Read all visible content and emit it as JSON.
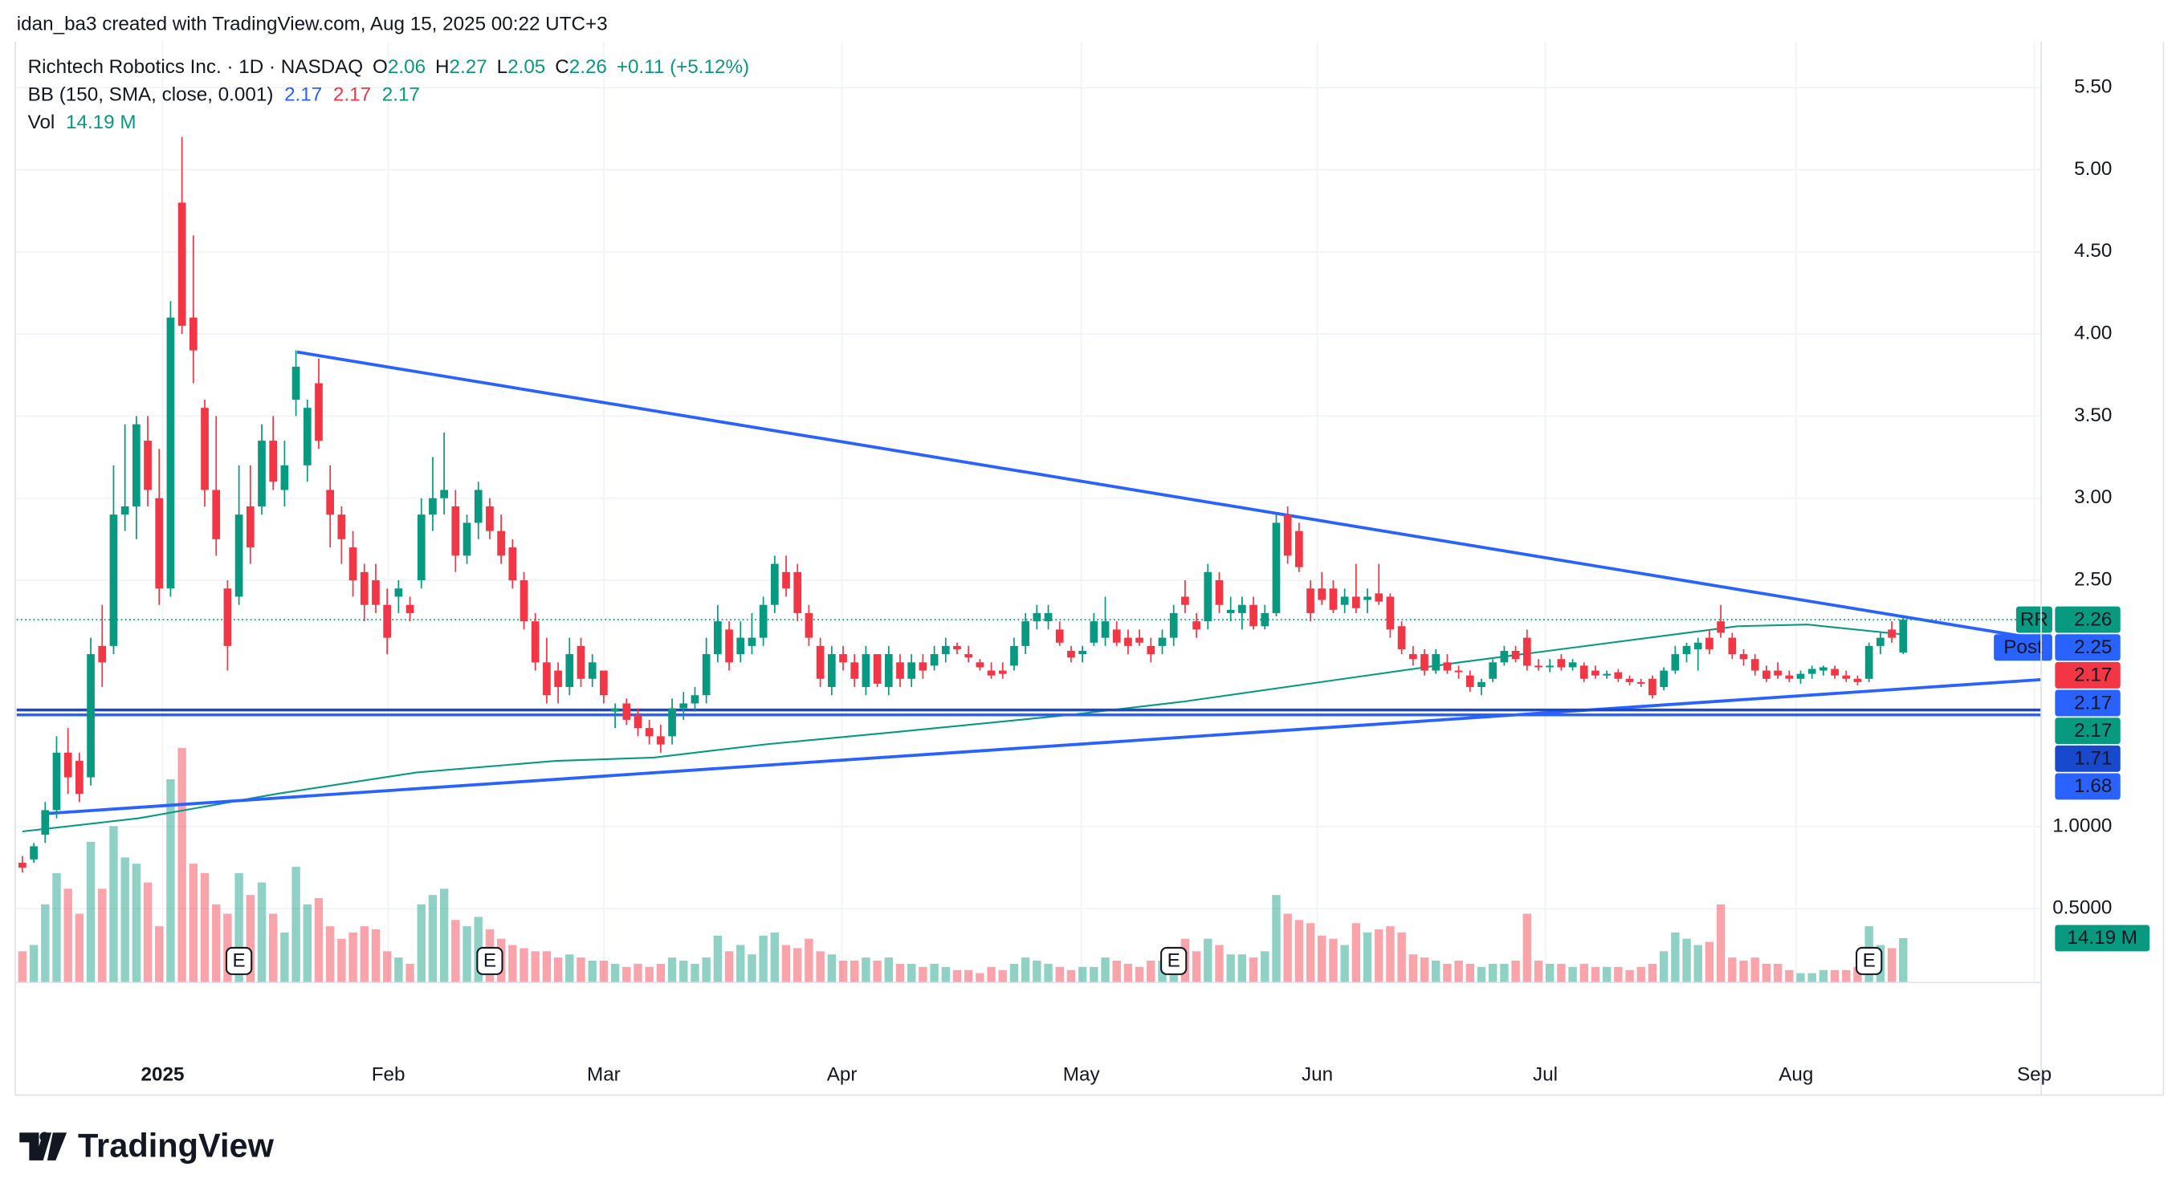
{
  "header": {
    "attribution": "idan_ba3 created with TradingView.com, Aug 15, 2025 00:22 UTC+3",
    "symbol": "Richtech Robotics Inc. · 1D · NASDAQ",
    "ohlc_keys": [
      "O",
      "H",
      "L",
      "C"
    ],
    "change": "+0.11 (+5.12%)",
    "volume_name": "Vol",
    "volume_last": {
      "value": 14.19,
      "label": "14.19 M"
    }
  },
  "footer": {
    "brand": "TradingView"
  },
  "chart_data": {
    "type": "candlestick",
    "up_color": "#089981",
    "down_color": "#f23645",
    "ylim": [
      0.05,
      5.78
    ],
    "yticks": [
      {
        "value": 0.5,
        "label": "0.5000"
      },
      {
        "value": 1,
        "label": "1.0000"
      },
      {
        "value": 2.5,
        "label": "2.50"
      },
      {
        "value": 3,
        "label": "3.00"
      },
      {
        "value": 3.5,
        "label": "3.50"
      },
      {
        "value": 4,
        "label": "4.00"
      },
      {
        "value": 4.5,
        "label": "4.50"
      },
      {
        "value": 5,
        "label": "5.00"
      },
      {
        "value": 5.5,
        "label": "5.50"
      }
    ],
    "xlim": [
      -0.5,
      177.1
    ],
    "xticks": [
      {
        "value": 12.3,
        "label": "2025"
      },
      {
        "value": 32.1,
        "label": "Feb"
      },
      {
        "value": 51,
        "label": "Mar"
      },
      {
        "value": 71.9,
        "label": "Apr"
      },
      {
        "value": 92.9,
        "label": "May"
      },
      {
        "value": 113.6,
        "label": "Jun"
      },
      {
        "value": 133.6,
        "label": "Jul"
      },
      {
        "value": 155.6,
        "label": "Aug"
      },
      {
        "value": 176.5,
        "label": "Sep"
      }
    ],
    "grid": true,
    "open": [
      0.78,
      0.8,
      0.95,
      1.1,
      1.45,
      1.4,
      1.3,
      2.1,
      2.1,
      2.9,
      2.95,
      3.35,
      3.0,
      2.45,
      4.8,
      4.1,
      3.55,
      3.05,
      2.45,
      2.4,
      2.95,
      2.95,
      3.35,
      3.05,
      3.6,
      3.2,
      3.7,
      3.05,
      2.9,
      2.7,
      2.55,
      2.5,
      2.35,
      2.4,
      2.35,
      2.5,
      2.9,
      3.0,
      2.95,
      2.65,
      2.85,
      2.95,
      2.8,
      2.7,
      2.5,
      2.25,
      2.0,
      1.95,
      1.85,
      2.1,
      1.9,
      1.95,
      1.7,
      1.75,
      1.68,
      1.6,
      1.55,
      1.55,
      1.72,
      1.75,
      1.8,
      2.05,
      2.2,
      2.05,
      2.1,
      2.15,
      2.35,
      2.55,
      2.55,
      2.3,
      2.1,
      1.85,
      2.05,
      2.0,
      1.85,
      2.05,
      1.85,
      2.0,
      1.9,
      2.0,
      1.98,
      2.05,
      2.1,
      2.05,
      2.0,
      1.95,
      1.95,
      1.98,
      2.1,
      2.25,
      2.25,
      2.2,
      2.07,
      2.05,
      2.12,
      2.15,
      2.2,
      2.15,
      2.15,
      2.1,
      2.1,
      2.15,
      2.4,
      2.25,
      2.25,
      2.5,
      2.3,
      2.3,
      2.35,
      2.22,
      2.3,
      2.9,
      2.8,
      2.45,
      2.45,
      2.45,
      2.35,
      2.4,
      2.38,
      2.42,
      2.4,
      2.22,
      2.05,
      2.05,
      1.95,
      2.0,
      1.95,
      1.92,
      1.85,
      1.9,
      2.0,
      2.07,
      2.15,
      1.98,
      1.97,
      2.02,
      1.97,
      1.98,
      1.95,
      1.92,
      1.94,
      1.9,
      1.88,
      1.9,
      1.85,
      1.95,
      2.05,
      2.08,
      2.15,
      2.25,
      2.15,
      2.05,
      2.02,
      1.95,
      1.95,
      1.92,
      1.9,
      1.93,
      1.95,
      1.96,
      1.92,
      1.9,
      1.9,
      2.1,
      2.2,
      2.06
    ],
    "high": [
      0.82,
      0.9,
      1.15,
      1.55,
      1.6,
      1.45,
      2.15,
      2.35,
      3.2,
      3.45,
      3.5,
      3.5,
      3.3,
      4.2,
      5.2,
      4.6,
      3.6,
      3.5,
      2.5,
      3.2,
      3.2,
      3.45,
      3.5,
      3.35,
      3.9,
      3.6,
      3.85,
      3.2,
      2.95,
      2.8,
      2.6,
      2.6,
      2.45,
      2.5,
      2.4,
      3.0,
      3.25,
      3.4,
      3.05,
      2.9,
      3.1,
      3.0,
      2.9,
      2.75,
      2.55,
      2.3,
      2.15,
      2.0,
      2.15,
      2.15,
      2.05,
      1.95,
      1.75,
      1.78,
      1.72,
      1.65,
      1.62,
      1.78,
      1.82,
      1.85,
      2.15,
      2.35,
      2.25,
      2.25,
      2.3,
      2.4,
      2.65,
      2.65,
      2.6,
      2.35,
      2.15,
      2.1,
      2.1,
      2.05,
      2.1,
      2.05,
      2.1,
      2.05,
      2.05,
      2.05,
      2.1,
      2.15,
      2.12,
      2.1,
      2.02,
      2.0,
      2.0,
      2.15,
      2.3,
      2.35,
      2.35,
      2.25,
      2.1,
      2.1,
      2.3,
      2.4,
      2.25,
      2.2,
      2.2,
      2.15,
      2.2,
      2.35,
      2.5,
      2.3,
      2.6,
      2.55,
      2.4,
      2.4,
      2.4,
      2.35,
      2.9,
      2.95,
      2.85,
      2.5,
      2.55,
      2.5,
      2.45,
      2.6,
      2.45,
      2.6,
      2.42,
      2.25,
      2.1,
      2.08,
      2.08,
      2.05,
      1.98,
      1.95,
      1.9,
      2.02,
      2.1,
      2.1,
      2.2,
      2.02,
      2.02,
      2.05,
      2.02,
      2.0,
      1.98,
      1.95,
      1.96,
      1.92,
      1.9,
      1.92,
      1.97,
      2.1,
      2.12,
      2.15,
      2.2,
      2.35,
      2.18,
      2.08,
      2.05,
      1.98,
      2.0,
      1.95,
      1.95,
      1.98,
      1.98,
      1.98,
      1.95,
      1.92,
      2.12,
      2.18,
      2.25,
      2.27
    ],
    "low": [
      0.72,
      0.78,
      0.9,
      1.05,
      1.2,
      1.15,
      1.25,
      1.85,
      2.05,
      2.8,
      2.75,
      2.95,
      2.35,
      2.4,
      4.0,
      3.7,
      2.95,
      2.65,
      1.95,
      2.35,
      2.6,
      2.9,
      3.05,
      2.95,
      3.5,
      3.1,
      3.3,
      2.7,
      2.6,
      2.4,
      2.25,
      2.3,
      2.05,
      2.3,
      2.25,
      2.45,
      2.8,
      2.9,
      2.55,
      2.6,
      2.75,
      2.75,
      2.6,
      2.45,
      2.2,
      1.95,
      1.75,
      1.75,
      1.8,
      1.85,
      1.85,
      1.75,
      1.6,
      1.62,
      1.55,
      1.5,
      1.45,
      1.5,
      1.65,
      1.7,
      1.75,
      2.0,
      1.95,
      2.0,
      2.05,
      2.1,
      2.3,
      2.4,
      2.25,
      2.1,
      1.85,
      1.8,
      1.95,
      1.85,
      1.8,
      1.85,
      1.8,
      1.85,
      1.85,
      1.9,
      1.95,
      2.0,
      2.05,
      2.0,
      1.95,
      1.9,
      1.9,
      1.95,
      2.05,
      2.2,
      2.2,
      2.1,
      2.0,
      2.0,
      2.1,
      2.1,
      2.1,
      2.05,
      2.1,
      2.0,
      2.05,
      2.1,
      2.3,
      2.15,
      2.2,
      2.3,
      2.25,
      2.2,
      2.2,
      2.2,
      2.28,
      2.6,
      2.55,
      2.25,
      2.35,
      2.3,
      2.3,
      2.3,
      2.3,
      2.35,
      2.15,
      2.05,
      1.98,
      1.92,
      1.93,
      1.93,
      1.9,
      1.82,
      1.8,
      1.88,
      1.98,
      2.0,
      1.95,
      1.95,
      1.94,
      1.95,
      1.95,
      1.88,
      1.9,
      1.9,
      1.88,
      1.86,
      1.85,
      1.78,
      1.83,
      1.93,
      2.0,
      1.95,
      2.05,
      2.15,
      2.02,
      1.98,
      1.92,
      1.88,
      1.9,
      1.88,
      1.87,
      1.9,
      1.92,
      1.9,
      1.88,
      1.86,
      1.88,
      2.05,
      2.12,
      2.05
    ],
    "close": [
      0.75,
      0.88,
      1.1,
      1.45,
      1.3,
      1.2,
      2.05,
      2.0,
      2.9,
      2.95,
      3.45,
      3.05,
      2.45,
      4.1,
      4.05,
      3.9,
      3.05,
      2.75,
      2.1,
      2.9,
      2.7,
      3.35,
      3.1,
      3.2,
      3.8,
      3.55,
      3.35,
      2.9,
      2.75,
      2.5,
      2.35,
      2.35,
      2.15,
      2.45,
      2.3,
      2.9,
      3.0,
      3.05,
      2.65,
      2.85,
      3.05,
      2.8,
      2.65,
      2.5,
      2.25,
      2.0,
      1.8,
      1.85,
      2.05,
      1.9,
      2.0,
      1.8,
      1.72,
      1.65,
      1.6,
      1.55,
      1.5,
      1.72,
      1.75,
      1.8,
      2.05,
      2.25,
      2.0,
      2.15,
      2.15,
      2.35,
      2.6,
      2.45,
      2.3,
      2.15,
      1.9,
      2.05,
      2.0,
      1.9,
      2.05,
      1.87,
      2.05,
      1.9,
      2.0,
      1.95,
      2.05,
      2.1,
      2.08,
      2.03,
      1.97,
      1.92,
      1.93,
      2.1,
      2.25,
      2.3,
      2.3,
      2.12,
      2.03,
      2.07,
      2.25,
      2.25,
      2.12,
      2.1,
      2.12,
      2.05,
      2.15,
      2.3,
      2.35,
      2.2,
      2.55,
      2.35,
      2.32,
      2.35,
      2.22,
      2.3,
      2.85,
      2.65,
      2.58,
      2.3,
      2.38,
      2.32,
      2.4,
      2.33,
      2.4,
      2.37,
      2.2,
      2.08,
      2.02,
      1.95,
      2.05,
      1.95,
      1.94,
      1.85,
      1.88,
      2.0,
      2.07,
      2.02,
      1.98,
      1.97,
      1.98,
      1.97,
      2.0,
      1.9,
      1.92,
      1.93,
      1.9,
      1.88,
      1.87,
      1.8,
      1.95,
      2.05,
      2.1,
      2.12,
      2.08,
      2.18,
      2.05,
      2.02,
      1.95,
      1.9,
      1.92,
      1.9,
      1.93,
      1.96,
      1.97,
      1.92,
      1.9,
      1.88,
      2.1,
      2.15,
      2.15,
      2.26
    ],
    "volume": [
      10,
      12,
      25,
      35,
      30,
      22,
      45,
      30,
      50,
      40,
      38,
      32,
      18,
      65,
      75,
      38,
      35,
      25,
      22,
      35,
      28,
      32,
      22,
      16,
      37,
      25,
      27,
      18,
      14,
      16,
      18,
      17,
      10,
      8,
      6,
      25,
      28,
      30,
      20,
      18,
      21,
      17,
      14,
      12,
      11,
      10,
      10,
      8,
      9,
      8,
      7,
      7,
      6,
      5,
      6,
      5,
      6,
      8,
      7,
      6,
      8,
      15,
      10,
      12,
      9,
      15,
      16,
      12,
      11,
      14,
      10,
      9,
      7,
      7,
      8,
      7,
      8,
      6,
      6,
      5,
      6,
      5,
      4,
      4,
      3,
      5,
      4,
      6,
      8,
      7,
      6,
      5,
      4,
      5,
      5,
      8,
      7,
      6,
      5,
      7,
      7,
      9,
      14,
      10,
      14,
      12,
      9,
      9,
      8,
      10,
      28,
      22,
      20,
      19,
      15,
      14,
      12,
      19,
      16,
      17,
      18,
      16,
      9,
      8,
      7,
      6,
      7,
      6,
      5,
      6,
      6,
      7,
      22,
      7,
      6,
      6,
      5,
      6,
      5,
      5,
      5,
      4,
      5,
      6,
      10,
      16,
      14,
      12,
      13,
      25,
      8,
      7,
      8,
      6,
      6,
      4,
      3,
      3,
      4,
      4,
      4,
      5,
      18,
      12,
      11,
      14.19
    ],
    "bb": {
      "name": "BB (150, SMA, close, 0.001)",
      "color": "#089981",
      "bands": [
        {
          "value": 2.17,
          "color": "#2962ff"
        },
        {
          "value": 2.17,
          "color": "#f23645"
        },
        {
          "value": 2.17,
          "color": "#089981"
        }
      ],
      "x": [
        0,
        10.2,
        22.4,
        34.6,
        46.8,
        55.4,
        65.1,
        77.3,
        91.9,
        101.7,
        113.9,
        126.1,
        138.3,
        150.5,
        156.6,
        165
      ],
      "values": [
        0.97,
        1.05,
        1.2,
        1.33,
        1.4,
        1.42,
        1.5,
        1.58,
        1.68,
        1.76,
        1.88,
        2.0,
        2.11,
        2.22,
        2.23,
        2.17
      ]
    },
    "trendlines": [
      {
        "color": "#2962ff",
        "x": [
          24.1,
          177.1
        ],
        "values": [
          3.89,
          2.14
        ]
      },
      {
        "color": "#2962ff",
        "x": [
          2.3,
          177.1
        ],
        "values": [
          1.08,
          1.895
        ]
      }
    ],
    "hlines": [
      {
        "value": 1.71,
        "color": "#1848cc"
      },
      {
        "value": 1.68,
        "color": "#2962ff"
      }
    ],
    "earnings": {
      "label": "E",
      "x": [
        19,
        41,
        101,
        162
      ]
    },
    "price_markers": [
      {
        "label": "RR",
        "value": 2.26,
        "color": "#089981"
      },
      {
        "label": "Post",
        "value": 2.25,
        "color": "#2962ff"
      },
      {
        "value": 2.17,
        "color": "#f23645"
      },
      {
        "value": 2.17,
        "color": "#2962ff"
      },
      {
        "value": 2.17,
        "color": "#089981"
      },
      {
        "value": 1.71,
        "color": "#1848cc"
      },
      {
        "value": 1.68,
        "color": "#2962ff"
      }
    ]
  }
}
